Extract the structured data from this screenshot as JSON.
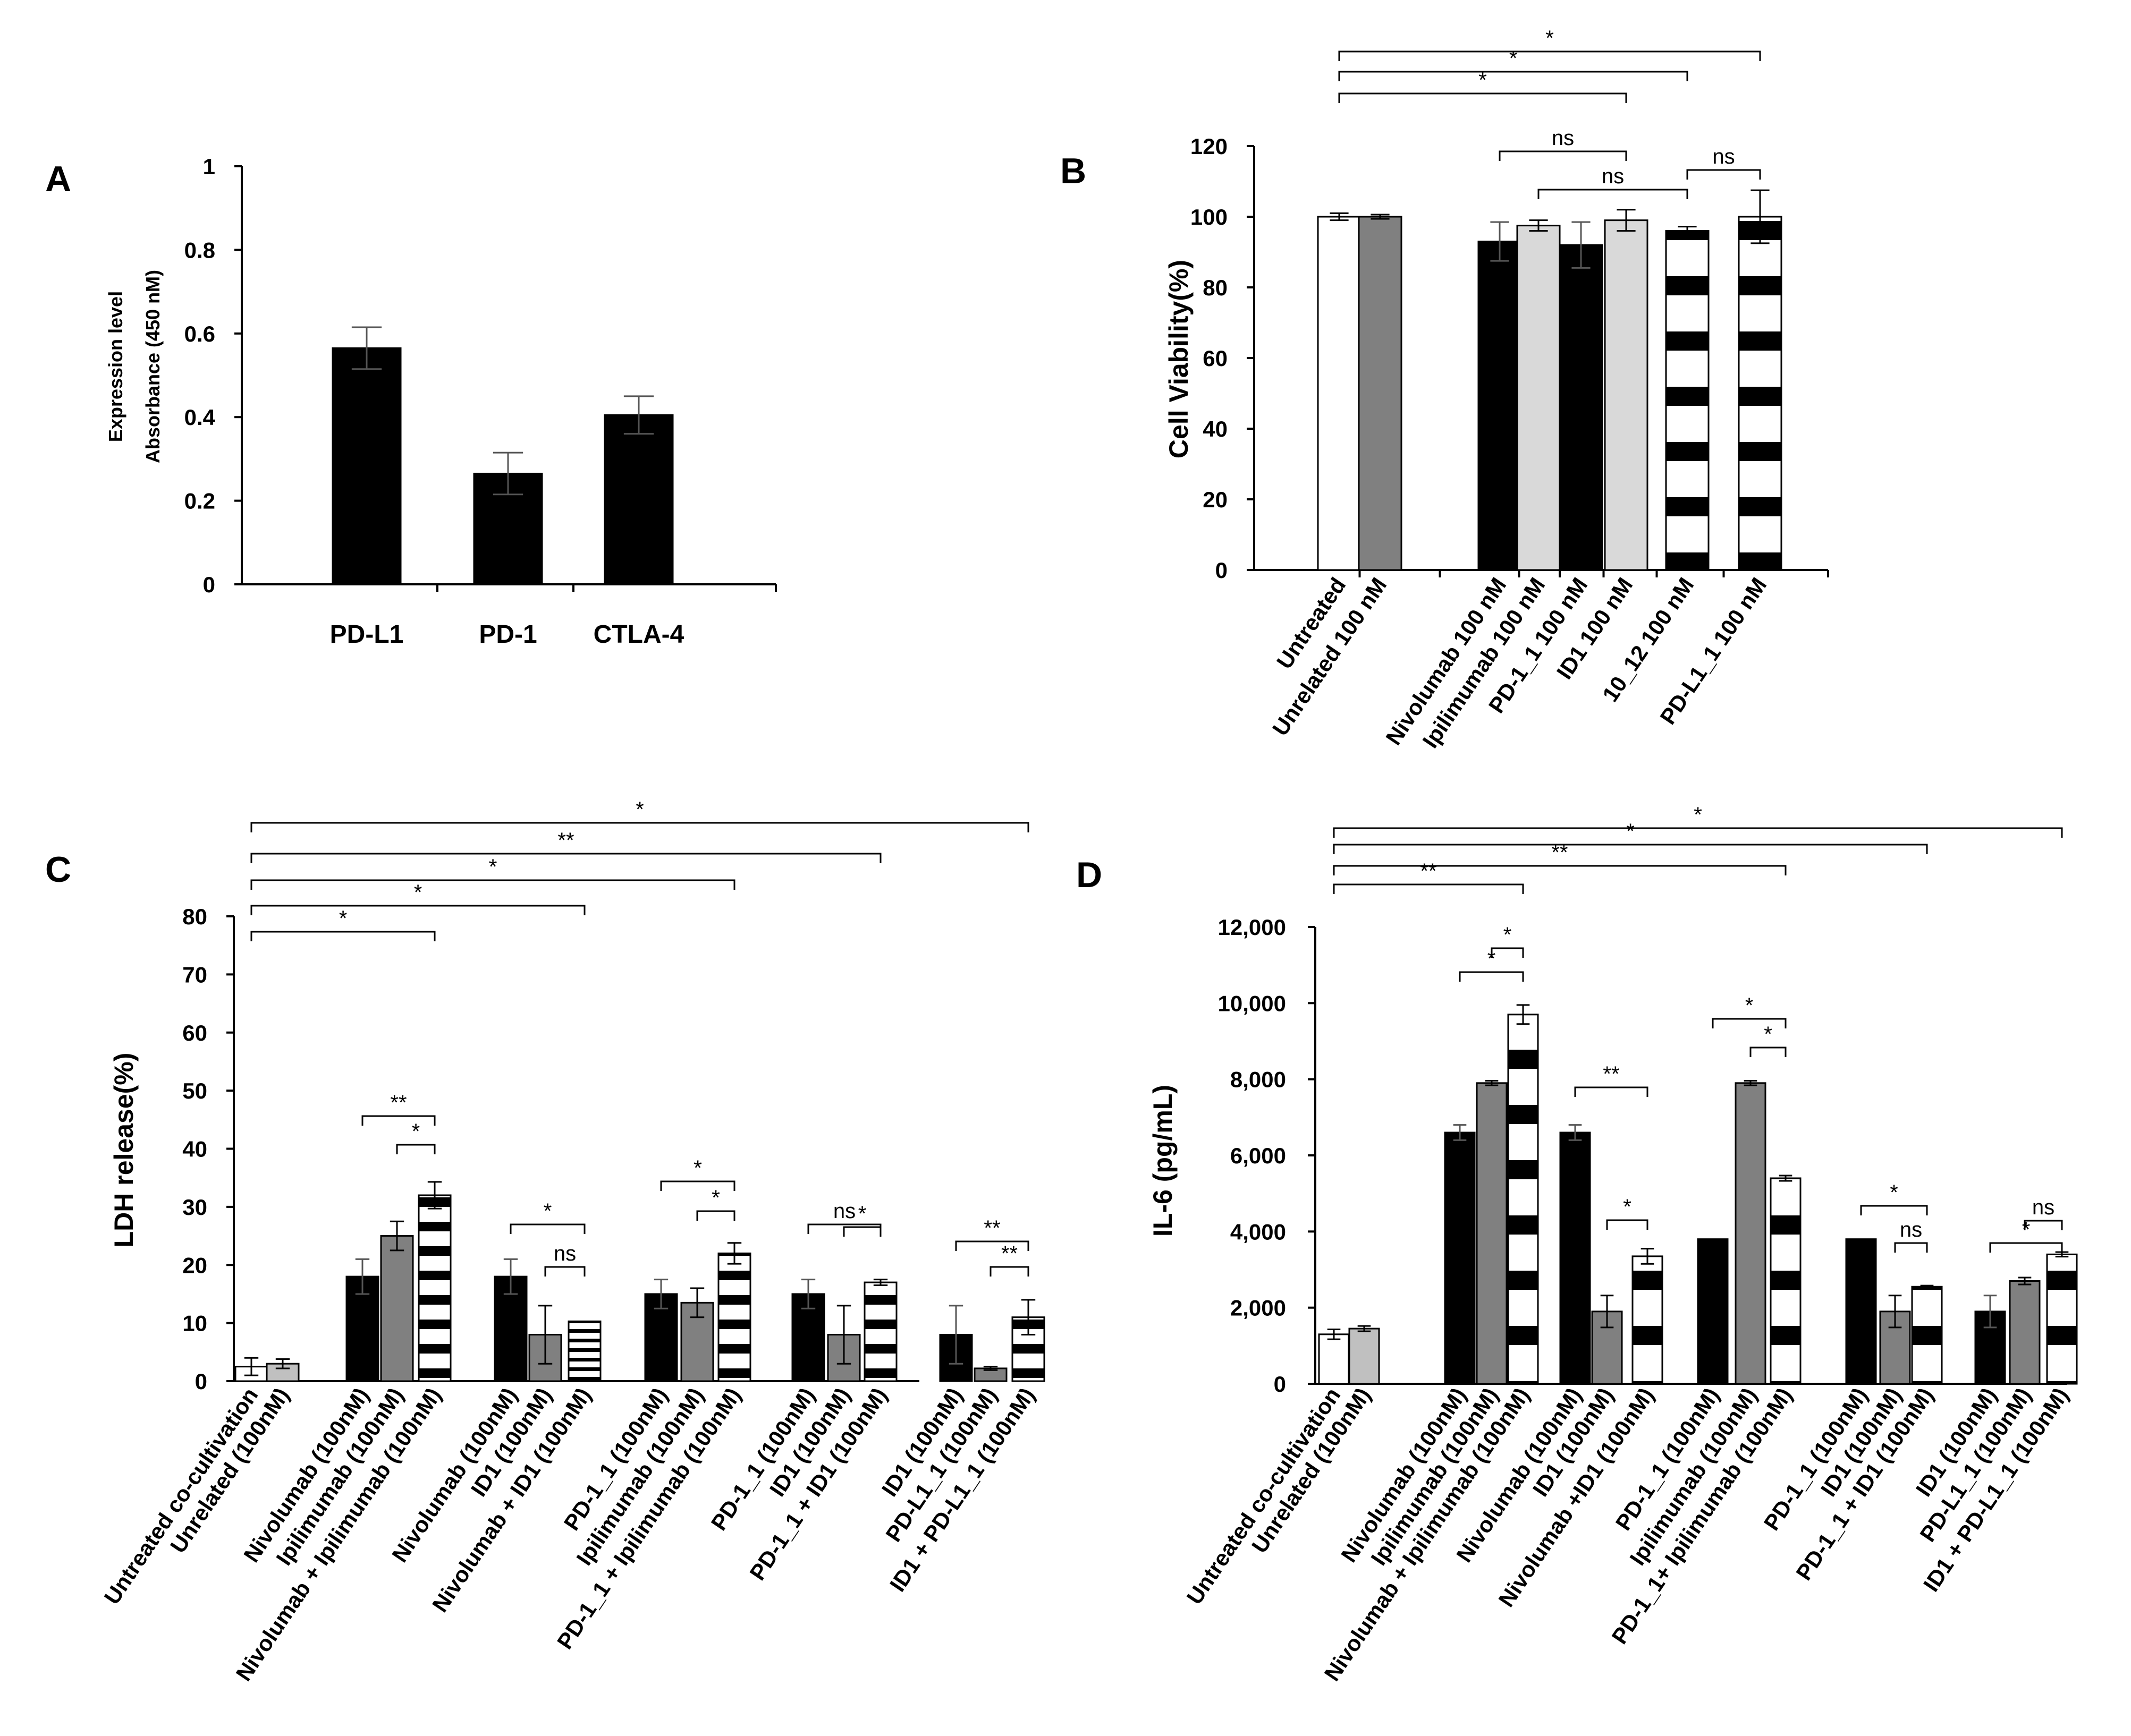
{
  "chart_data": [
    {
      "panel": "A",
      "type": "bar",
      "ylabel": [
        "Expression level",
        "Absorbance (450 nM)"
      ],
      "ylim": [
        0,
        1
      ],
      "yticks": [
        {
          "v": 0,
          "label": "0"
        },
        {
          "v": 0.2,
          "label": "0.2"
        },
        {
          "v": 0.4,
          "label": "0.4"
        },
        {
          "v": 0.6,
          "label": "0.6"
        },
        {
          "v": 0.8,
          "label": "0.8"
        },
        {
          "v": 1,
          "label": "1"
        }
      ],
      "bars": [
        {
          "label": "PD-L1",
          "value": 0.565,
          "err": 0.05,
          "style": "black"
        },
        {
          "label": "PD-1",
          "value": 0.265,
          "err": 0.05,
          "style": "black"
        },
        {
          "label": "CTLA-4",
          "value": 0.405,
          "err": 0.045,
          "style": "black"
        }
      ],
      "brackets": []
    },
    {
      "panel": "B",
      "type": "bar",
      "ylabel": [
        "Cell Viability(%)"
      ],
      "ylim": [
        0,
        120
      ],
      "yticks": [
        {
          "v": 0,
          "label": "0"
        },
        {
          "v": 20,
          "label": "20"
        },
        {
          "v": 40,
          "label": "40"
        },
        {
          "v": 60,
          "label": "60"
        },
        {
          "v": 80,
          "label": "80"
        },
        {
          "v": 100,
          "label": "100"
        },
        {
          "v": 120,
          "label": "120"
        }
      ],
      "bars": [
        {
          "label": "Untreated",
          "value": 100,
          "err": 1,
          "style": "white"
        },
        {
          "label": "Unrelated 100 nM",
          "value": 100,
          "err": 0.6,
          "style": "gray"
        },
        {
          "label": "Nivolumab 100 nM",
          "value": 93,
          "err": 5.5,
          "style": "black"
        },
        {
          "label": "Ipilimumab 100 nM",
          "value": 97.5,
          "err": 1.5,
          "style": "lightgray"
        },
        {
          "label": "PD-1_1 100 nM",
          "value": 92,
          "err": 6.5,
          "style": "black"
        },
        {
          "label": "ID1 100 nM",
          "value": 99,
          "err": 3,
          "style": "lightgray"
        },
        {
          "label": "10_12 100 nM",
          "value": 96,
          "err": 1.2,
          "style": "hstripe"
        },
        {
          "label": "PD-L1_1 100 nM",
          "value": 100,
          "err": 7.5,
          "style": "hstripe"
        }
      ],
      "brackets": [
        {
          "from": 0,
          "to": 7,
          "label": "*",
          "level": 3
        },
        {
          "from": 0,
          "to": 6,
          "label": "*",
          "level": 2
        },
        {
          "from": 0,
          "to": 5,
          "label": "*",
          "level": 1
        },
        {
          "from": 2,
          "to": 5,
          "label": "ns",
          "level": 0
        },
        {
          "from": 3,
          "to": 6,
          "label": "ns",
          "level": -1
        },
        {
          "from": 6,
          "to": 7,
          "label": "ns",
          "level": -1.2
        }
      ]
    },
    {
      "panel": "C",
      "type": "bar",
      "ylabel": [
        "LDH release(%)"
      ],
      "ylim": [
        0,
        80
      ],
      "yticks": [
        {
          "v": 0,
          "label": "0"
        },
        {
          "v": 10,
          "label": "10"
        },
        {
          "v": 20,
          "label": "20"
        },
        {
          "v": 30,
          "label": "30"
        },
        {
          "v": 40,
          "label": "40"
        },
        {
          "v": 50,
          "label": "50"
        },
        {
          "v": 60,
          "label": "60"
        },
        {
          "v": 70,
          "label": "70"
        },
        {
          "v": 80,
          "label": "80"
        }
      ],
      "bars": [
        {
          "label": "Untreated co-cultivation",
          "value": 2.5,
          "err": 1.5,
          "style": "white",
          "group": 0
        },
        {
          "label": "Unrelated (100nM)",
          "value": 3,
          "err": 0.8,
          "style": "lightgray",
          "group": 0
        },
        {
          "label": "Nivolumab (100nM)",
          "value": 18,
          "err": 3,
          "style": "black",
          "group": 1
        },
        {
          "label": "Ipilimumab (100nM)",
          "value": 25,
          "err": 2.5,
          "style": "gray",
          "group": 1
        },
        {
          "label": "Nivolumab + Ipilimumab (100nM)",
          "value": 32,
          "err": 2.3,
          "style": "hstripe",
          "group": 1
        },
        {
          "label": "Nivolumab (100nM)",
          "value": 18,
          "err": 3,
          "style": "black",
          "group": 2
        },
        {
          "label": "ID1 (100nM)",
          "value": 8,
          "err": 5,
          "style": "gray",
          "group": 2
        },
        {
          "label": "Nivolumab + ID1 (100nM)",
          "value": 10.3,
          "err": 0,
          "style": "thinstripe",
          "group": 2
        },
        {
          "label": "PD-1_1 (100nM)",
          "value": 15,
          "err": 2.5,
          "style": "black",
          "group": 3
        },
        {
          "label": "Ipilimumab (100nM)",
          "value": 13.5,
          "err": 2.5,
          "style": "gray",
          "group": 3
        },
        {
          "label": "PD-1_1 + Ipilimumab (100nM)",
          "value": 22,
          "err": 1.8,
          "style": "hstripe",
          "group": 3
        },
        {
          "label": "PD-1_1 (100nM)",
          "value": 15,
          "err": 2.5,
          "style": "black",
          "group": 4
        },
        {
          "label": "ID1 (100nM)",
          "value": 8,
          "err": 5,
          "style": "gray",
          "group": 4
        },
        {
          "label": "PD-1_1 + ID1 (100nM)",
          "value": 17,
          "err": 0.5,
          "style": "hstripe",
          "group": 4
        },
        {
          "label": "ID1 (100nM)",
          "value": 8,
          "err": 5,
          "style": "black",
          "group": 5
        },
        {
          "label": "PD-L1_1 (100nM)",
          "value": 2.2,
          "err": 0.3,
          "style": "gray",
          "group": 5
        },
        {
          "label": "ID1 + PD-L1_1 (100nM)",
          "value": 11,
          "err": 3,
          "style": "hstripe",
          "group": 5
        }
      ],
      "brackets": [
        {
          "from": 0,
          "to": 16,
          "label": "*",
          "level": 4
        },
        {
          "from": 0,
          "to": 13,
          "label": "**",
          "level": 3
        },
        {
          "from": 0,
          "to": 10,
          "label": "*",
          "level": 2
        },
        {
          "from": 0,
          "to": 7,
          "label": "*",
          "level": 1
        },
        {
          "from": 0,
          "to": 4,
          "label": "*",
          "level": 0
        },
        {
          "from": 2,
          "to": 4,
          "label": "**",
          "level": -4
        },
        {
          "from": 3,
          "to": 4,
          "label": "*",
          "level": -5
        },
        {
          "from": 5,
          "to": 7,
          "label": "*",
          "level": -6.8
        },
        {
          "from": 6,
          "to": 7,
          "label": "ns",
          "level": -7.8
        },
        {
          "from": 8,
          "to": 10,
          "label": "*",
          "level": -6
        },
        {
          "from": 9,
          "to": 10,
          "label": "*",
          "level": -7
        },
        {
          "from": 11,
          "to": 13,
          "label": "ns",
          "level": -6.8
        },
        {
          "from": 12,
          "to": 13,
          "label": "*",
          "level": -7.6
        },
        {
          "from": 14,
          "to": 16,
          "label": "**",
          "level": -7.4
        },
        {
          "from": 15,
          "to": 16,
          "label": "**",
          "level": -7.8
        }
      ]
    },
    {
      "panel": "D",
      "type": "bar",
      "ylabel": [
        "IL-6 (pg/mL)"
      ],
      "ylim": [
        0,
        12000
      ],
      "yticks": [
        {
          "v": 0,
          "label": "0"
        },
        {
          "v": 2000,
          "label": "2,000"
        },
        {
          "v": 4000,
          "label": "4,000"
        },
        {
          "v": 6000,
          "label": "6,000"
        },
        {
          "v": 8000,
          "label": "8,000"
        },
        {
          "v": 10000,
          "label": "10,000"
        },
        {
          "v": 12000,
          "label": "12,000"
        }
      ],
      "bars": [
        {
          "label": "Untreated co-cultivation",
          "value": 1300,
          "err": 130,
          "style": "white",
          "group": 0
        },
        {
          "label": "Unrelated (100nM)",
          "value": 1450,
          "err": 70,
          "style": "lightgray",
          "group": 0
        },
        {
          "label": "Nivolumab (100nM)",
          "value": 6600,
          "err": 200,
          "style": "black",
          "group": 1
        },
        {
          "label": "Ipilimumab (100nM)",
          "value": 7900,
          "err": 60,
          "style": "gray",
          "group": 1
        },
        {
          "label": "Nivolumab + Ipilimumab (100nM)",
          "value": 9700,
          "err": 250,
          "style": "hstripe",
          "group": 1
        },
        {
          "label": "Nivolumab (100nM)",
          "value": 6600,
          "err": 200,
          "style": "black",
          "group": 2
        },
        {
          "label": "ID1 (100nM)",
          "value": 1900,
          "err": 420,
          "style": "gray",
          "group": 2
        },
        {
          "label": "Nivolumab +ID1 (100nM)",
          "value": 3350,
          "err": 200,
          "style": "hstripe",
          "group": 2
        },
        {
          "label": "PD-1_1 (100nM)",
          "value": 3800,
          "err": 0,
          "style": "black",
          "group": 3
        },
        {
          "label": "Ipilimumab (100nM)",
          "value": 7900,
          "err": 60,
          "style": "gray",
          "group": 3
        },
        {
          "label": "PD-1_1+ Ipilimumab (100nM)",
          "value": 5400,
          "err": 70,
          "style": "hstripe",
          "group": 3
        },
        {
          "label": "PD-1_1 (100nM)",
          "value": 3800,
          "err": 0,
          "style": "black",
          "group": 4
        },
        {
          "label": "ID1 (100nM)",
          "value": 1900,
          "err": 420,
          "style": "gray",
          "group": 4
        },
        {
          "label": "PD-1_1 + ID1 (100nM)",
          "value": 2550,
          "err": 30,
          "style": "hstripe",
          "group": 4
        },
        {
          "label": "ID1 (100nM)",
          "value": 1900,
          "err": 420,
          "style": "black",
          "group": 5
        },
        {
          "label": "PD-L1_1 (100nM)",
          "value": 2700,
          "err": 90,
          "style": "gray",
          "group": 5
        },
        {
          "label": "ID1 + PD-L1_1 (100nM)",
          "value": 3400,
          "err": 60,
          "style": "hstripe",
          "group": 5
        }
      ],
      "brackets": [
        {
          "from": 0,
          "to": 16,
          "label": "*",
          "level": 3
        },
        {
          "from": 0,
          "to": 13,
          "label": "*",
          "level": 2
        },
        {
          "from": 0,
          "to": 10,
          "label": "**",
          "level": 1
        },
        {
          "from": 0,
          "to": 4,
          "label": "**",
          "level": 0
        },
        {
          "from": 3,
          "to": 4,
          "label": "*",
          "level": -1.6
        },
        {
          "from": 2,
          "to": 4,
          "label": "*",
          "level": -2.6
        },
        {
          "from": 5,
          "to": 7,
          "label": "**",
          "level": -6
        },
        {
          "from": 6,
          "to": 7,
          "label": "*",
          "level": -9.3
        },
        {
          "from": 8,
          "to": 10,
          "label": "*",
          "level": -3.6
        },
        {
          "from": 9,
          "to": 10,
          "label": "*",
          "level": -4.4
        },
        {
          "from": 11,
          "to": 13,
          "label": "*",
          "level": -8.2
        },
        {
          "from": 12,
          "to": 13,
          "label": "ns",
          "level": -8.8
        },
        {
          "from": 14,
          "to": 16,
          "label": "*",
          "level": -8.8
        },
        {
          "from": 15,
          "to": 16,
          "label": "ns",
          "level": -9.6
        }
      ]
    }
  ]
}
